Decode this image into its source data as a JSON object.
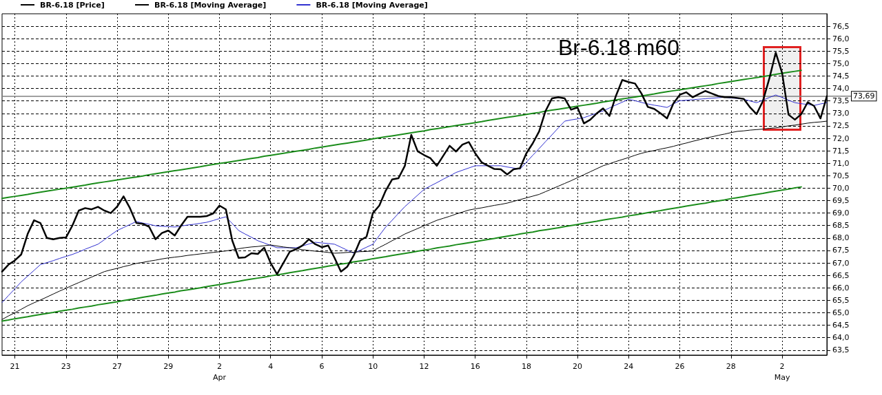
{
  "chart_data": {
    "type": "line",
    "title": "Br-6.18 m60",
    "marker": "none",
    "grid": true,
    "legend": "top left",
    "ylim": [
      63.3,
      77.0
    ],
    "categories": [
      null,
      null,
      "21",
      null,
      null,
      null,
      null,
      null,
      null,
      null,
      "23",
      null,
      null,
      null,
      null,
      null,
      null,
      null,
      "27",
      null,
      null,
      null,
      null,
      null,
      null,
      null,
      "29",
      null,
      null,
      null,
      null,
      null,
      null,
      null,
      "2\nApr",
      null,
      null,
      null,
      null,
      null,
      null,
      null,
      "4",
      null,
      null,
      null,
      null,
      null,
      null,
      null,
      "6",
      null,
      null,
      null,
      null,
      null,
      null,
      null,
      "10",
      null,
      null,
      null,
      null,
      null,
      null,
      null,
      "12",
      null,
      null,
      null,
      null,
      null,
      null,
      null,
      "16",
      null,
      null,
      null,
      null,
      null,
      null,
      null,
      "18",
      null,
      null,
      null,
      null,
      null,
      null,
      null,
      "20",
      null,
      null,
      null,
      null,
      null,
      null,
      null,
      "24",
      null,
      null,
      null,
      null,
      null,
      null,
      null,
      "26",
      null,
      null,
      null,
      null,
      null,
      null,
      null,
      "28",
      null,
      null,
      null,
      null,
      null,
      null,
      null,
      "2\nMay",
      null,
      null,
      null,
      null,
      null,
      null,
      null
    ],
    "yticks": [
      {
        "value": 63.5,
        "label": "63,5"
      },
      {
        "value": 64,
        "label": "64,0"
      },
      {
        "value": 64.5,
        "label": "64,5"
      },
      {
        "value": 65,
        "label": "65,0"
      },
      {
        "value": 65.5,
        "label": "65,5"
      },
      {
        "value": 66,
        "label": "66,0"
      },
      {
        "value": 66.5,
        "label": "66,5"
      },
      {
        "value": 67,
        "label": "67,0"
      },
      {
        "value": 67.5,
        "label": "67,5"
      },
      {
        "value": 68,
        "label": "68,0"
      },
      {
        "value": 68.5,
        "label": "68,5"
      },
      {
        "value": 69,
        "label": "69,0"
      },
      {
        "value": 69.5,
        "label": "69,5"
      },
      {
        "value": 70,
        "label": "70,0"
      },
      {
        "value": 70.5,
        "label": "70,5"
      },
      {
        "value": 71,
        "label": "71,0"
      },
      {
        "value": 71.5,
        "label": "71,5"
      },
      {
        "value": 72,
        "label": "72,0"
      },
      {
        "value": 72.5,
        "label": "72,5"
      },
      {
        "value": 73,
        "label": "73,0"
      },
      {
        "value": 73.5,
        "label": "73,5"
      },
      {
        "value": 74,
        "label": "74,0"
      },
      {
        "value": 74.5,
        "label": "74,5"
      },
      {
        "value": 75,
        "label": "75,0"
      },
      {
        "value": 75.5,
        "label": "75,5"
      },
      {
        "value": 76,
        "label": "76,0"
      },
      {
        "value": 76.5,
        "label": "76,5"
      }
    ],
    "ref_lines": [
      {
        "axis": "y",
        "value": 73.69,
        "label": "73,69",
        "color": "#808080"
      }
    ],
    "series": [
      {
        "name": "BR-6.18 [Price]",
        "color": "#000000",
        "values": [
          66.65,
          66.93,
          67.1,
          67.34,
          68.16,
          68.71,
          68.6,
          68.0,
          67.95,
          68.0,
          68.02,
          68.5,
          69.1,
          69.2,
          69.15,
          69.25,
          69.1,
          69.0,
          69.26,
          69.67,
          69.2,
          68.6,
          68.57,
          68.45,
          67.95,
          68.2,
          68.3,
          68.1,
          68.5,
          68.85,
          68.85,
          68.85,
          68.88,
          68.98,
          69.3,
          69.15,
          67.9,
          67.2,
          67.22,
          67.39,
          67.36,
          67.61,
          67.0,
          66.55,
          67.0,
          67.45,
          67.55,
          67.7,
          67.95,
          67.75,
          67.63,
          67.7,
          67.2,
          66.65,
          66.85,
          67.3,
          67.9,
          68.05,
          69.0,
          69.3,
          69.9,
          70.35,
          70.4,
          70.9,
          72.14,
          71.48,
          71.33,
          71.2,
          70.9,
          71.3,
          71.7,
          71.47,
          71.75,
          71.85,
          71.4,
          71.04,
          70.9,
          70.77,
          70.76,
          70.55,
          70.76,
          70.8,
          71.4,
          71.8,
          72.28,
          73.1,
          73.6,
          73.65,
          73.6,
          73.15,
          73.24,
          72.6,
          72.75,
          73.0,
          73.2,
          72.9,
          73.7,
          74.34,
          74.26,
          74.2,
          73.8,
          73.26,
          73.18,
          73.0,
          72.8,
          73.4,
          73.75,
          73.85,
          73.65,
          73.78,
          73.9,
          73.8,
          73.7,
          73.65,
          73.65,
          73.62,
          73.58,
          73.24,
          72.97,
          73.5,
          74.4,
          75.44,
          74.62,
          72.95,
          72.75,
          72.97,
          73.45,
          73.3,
          72.8,
          73.69
        ]
      },
      {
        "name": "BR-6.18 [Moving Average]",
        "color": "#000000",
        "values": [
          64.73,
          64.87,
          65.0,
          65.14,
          65.28,
          65.4,
          65.51,
          65.63,
          65.75,
          65.87,
          65.98,
          66.1,
          66.21,
          66.32,
          66.43,
          66.54,
          66.65,
          66.72,
          66.78,
          66.85,
          66.91,
          66.98,
          67.02,
          67.07,
          67.11,
          67.16,
          67.2,
          67.23,
          67.26,
          67.3,
          67.33,
          67.36,
          67.39,
          67.42,
          67.45,
          67.48,
          67.52,
          67.57,
          67.61,
          67.64,
          67.66,
          67.69,
          67.72,
          67.68,
          67.64,
          67.61,
          67.57,
          67.53,
          67.5,
          67.47,
          67.45,
          67.42,
          67.39,
          67.4,
          67.42,
          67.43,
          67.45,
          67.46,
          67.48,
          67.62,
          67.75,
          67.89,
          68.02,
          68.16,
          68.27,
          68.38,
          68.49,
          68.6,
          68.71,
          68.79,
          68.87,
          68.96,
          69.04,
          69.12,
          69.17,
          69.21,
          69.26,
          69.31,
          69.35,
          69.4,
          69.47,
          69.54,
          69.61,
          69.68,
          69.75,
          69.86,
          69.97,
          70.08,
          70.19,
          70.3,
          70.42,
          70.54,
          70.66,
          70.78,
          70.9,
          70.98,
          71.07,
          71.15,
          71.23,
          71.32,
          71.4,
          71.46,
          71.51,
          71.57,
          71.62,
          71.68,
          71.75,
          71.81,
          71.88,
          71.94,
          72.01,
          72.06,
          72.12,
          72.17,
          72.23,
          72.28,
          72.3,
          72.33,
          72.35,
          72.37,
          72.4,
          72.42,
          72.46,
          72.5,
          72.53,
          72.57,
          72.61,
          72.64,
          72.66,
          72.69
        ]
      },
      {
        "name": "BR-6.18 [Moving Average]",
        "color": "#3030d0",
        "values": [
          65.41,
          65.69,
          65.96,
          66.24,
          66.47,
          66.7,
          66.93,
          67.01,
          67.09,
          67.18,
          67.26,
          67.34,
          67.44,
          67.55,
          67.65,
          67.75,
          67.93,
          68.12,
          68.3,
          68.42,
          68.54,
          68.66,
          68.6,
          68.55,
          68.49,
          68.47,
          68.46,
          68.44,
          68.48,
          68.52,
          68.55,
          68.59,
          68.63,
          68.7,
          68.78,
          68.85,
          68.58,
          68.3,
          68.16,
          68.03,
          67.89,
          67.8,
          67.7,
          67.61,
          67.61,
          67.61,
          67.61,
          67.68,
          67.76,
          67.83,
          67.8,
          67.78,
          67.75,
          67.63,
          67.51,
          67.39,
          67.51,
          67.63,
          67.75,
          68.1,
          68.44,
          68.71,
          68.99,
          69.26,
          69.49,
          69.72,
          69.95,
          70.09,
          70.22,
          70.36,
          70.49,
          70.63,
          70.72,
          70.81,
          70.9,
          70.9,
          70.9,
          70.9,
          70.9,
          70.85,
          70.81,
          70.76,
          71.04,
          71.32,
          71.59,
          71.87,
          72.14,
          72.42,
          72.69,
          72.74,
          72.78,
          72.83,
          72.92,
          73.01,
          73.1,
          73.22,
          73.34,
          73.45,
          73.57,
          73.51,
          73.44,
          73.38,
          73.33,
          73.29,
          73.24,
          73.38,
          73.51,
          73.53,
          73.55,
          73.57,
          73.59,
          73.61,
          73.63,
          73.65,
          73.62,
          73.6,
          73.57,
          73.5,
          73.43,
          73.53,
          73.64,
          73.74,
          73.64,
          73.53,
          73.43,
          73.39,
          73.36,
          73.32,
          73.38,
          73.43
        ]
      },
      {
        "color": "#1a8c1a",
        "values": [
          69.59,
          69.63,
          69.67,
          69.71,
          69.75,
          69.8,
          69.84,
          69.88,
          69.92,
          69.96,
          70.0,
          70.04,
          70.08,
          70.12,
          70.17,
          70.21,
          70.25,
          70.29,
          70.33,
          70.37,
          70.41,
          70.45,
          70.49,
          70.54,
          70.58,
          70.62,
          70.66,
          70.7,
          70.74,
          70.78,
          70.82,
          70.86,
          70.91,
          70.95,
          70.99,
          71.03,
          71.07,
          71.11,
          71.15,
          71.19,
          71.23,
          71.28,
          71.32,
          71.36,
          71.4,
          71.44,
          71.48,
          71.52,
          71.56,
          71.61,
          71.65,
          71.69,
          71.73,
          71.77,
          71.81,
          71.85,
          71.89,
          71.93,
          71.98,
          72.02,
          72.06,
          72.1,
          72.14,
          72.18,
          72.22,
          72.26,
          72.3,
          72.35,
          72.39,
          72.43,
          72.47,
          72.51,
          72.55,
          72.59,
          72.63,
          72.67,
          72.72,
          72.76,
          72.8,
          72.84,
          72.88,
          72.92,
          72.96,
          73.0,
          73.04,
          73.09,
          73.13,
          73.17,
          73.21,
          73.25,
          73.29,
          73.33,
          73.37,
          73.41,
          73.46,
          73.5,
          73.54,
          73.58,
          73.62,
          73.66,
          73.7,
          73.74,
          73.78,
          73.83,
          73.87,
          73.91,
          73.95,
          73.99,
          74.03,
          74.07,
          74.11,
          74.15,
          74.2,
          74.24,
          74.28,
          74.32,
          74.36,
          74.4,
          74.44,
          74.48,
          74.52,
          74.57,
          74.61,
          74.65,
          74.69,
          74.73,
          null,
          null,
          null,
          null
        ]
      },
      {
        "color": "#1a8c1a",
        "values": [
          64.67,
          64.71,
          64.76,
          64.8,
          64.84,
          64.89,
          64.93,
          64.97,
          65.01,
          65.06,
          65.1,
          65.14,
          65.19,
          65.23,
          65.27,
          65.32,
          65.36,
          65.4,
          65.44,
          65.49,
          65.53,
          65.57,
          65.62,
          65.66,
          65.7,
          65.75,
          65.79,
          65.83,
          65.88,
          65.92,
          65.96,
          66.0,
          66.05,
          66.09,
          66.13,
          66.18,
          66.22,
          66.26,
          66.31,
          66.35,
          66.39,
          66.43,
          66.48,
          66.52,
          66.56,
          66.61,
          66.65,
          66.69,
          66.74,
          66.78,
          66.82,
          66.87,
          66.91,
          66.95,
          66.99,
          67.04,
          67.08,
          67.12,
          67.17,
          67.21,
          67.25,
          67.3,
          67.34,
          67.38,
          67.42,
          67.47,
          67.51,
          67.55,
          67.6,
          67.64,
          67.68,
          67.73,
          67.77,
          67.81,
          67.85,
          67.9,
          67.94,
          67.98,
          68.03,
          68.07,
          68.11,
          68.16,
          68.2,
          68.24,
          68.29,
          68.33,
          68.37,
          68.41,
          68.46,
          68.5,
          68.54,
          68.59,
          68.63,
          68.67,
          68.72,
          68.76,
          68.8,
          68.84,
          68.89,
          68.93,
          68.97,
          69.02,
          69.06,
          69.1,
          69.15,
          69.19,
          69.23,
          69.28,
          69.32,
          69.36,
          69.4,
          69.45,
          69.49,
          69.53,
          69.58,
          69.62,
          69.66,
          69.71,
          69.75,
          69.79,
          69.84,
          69.88,
          69.92,
          69.96,
          70.01,
          70.05,
          null,
          null,
          null,
          null
        ]
      }
    ]
  }
}
